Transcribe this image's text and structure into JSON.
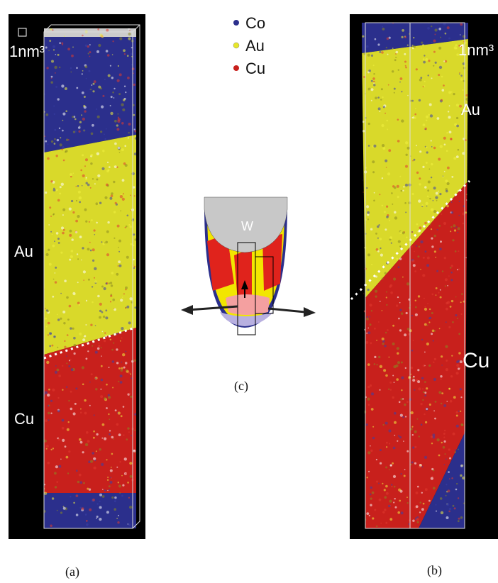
{
  "legend": [
    {
      "label": "Co"
    },
    {
      "label": "Au"
    },
    {
      "label": "Cu"
    }
  ],
  "panels": {
    "a": {
      "caption": "(a)",
      "scale": "1nm³",
      "labels": [
        "Au",
        "Cu"
      ]
    },
    "b": {
      "caption": "(b)",
      "scale": "1nm³",
      "labels": [
        "Au",
        "Cu"
      ]
    },
    "c": {
      "caption": "(c)",
      "tip_label": "W"
    }
  }
}
